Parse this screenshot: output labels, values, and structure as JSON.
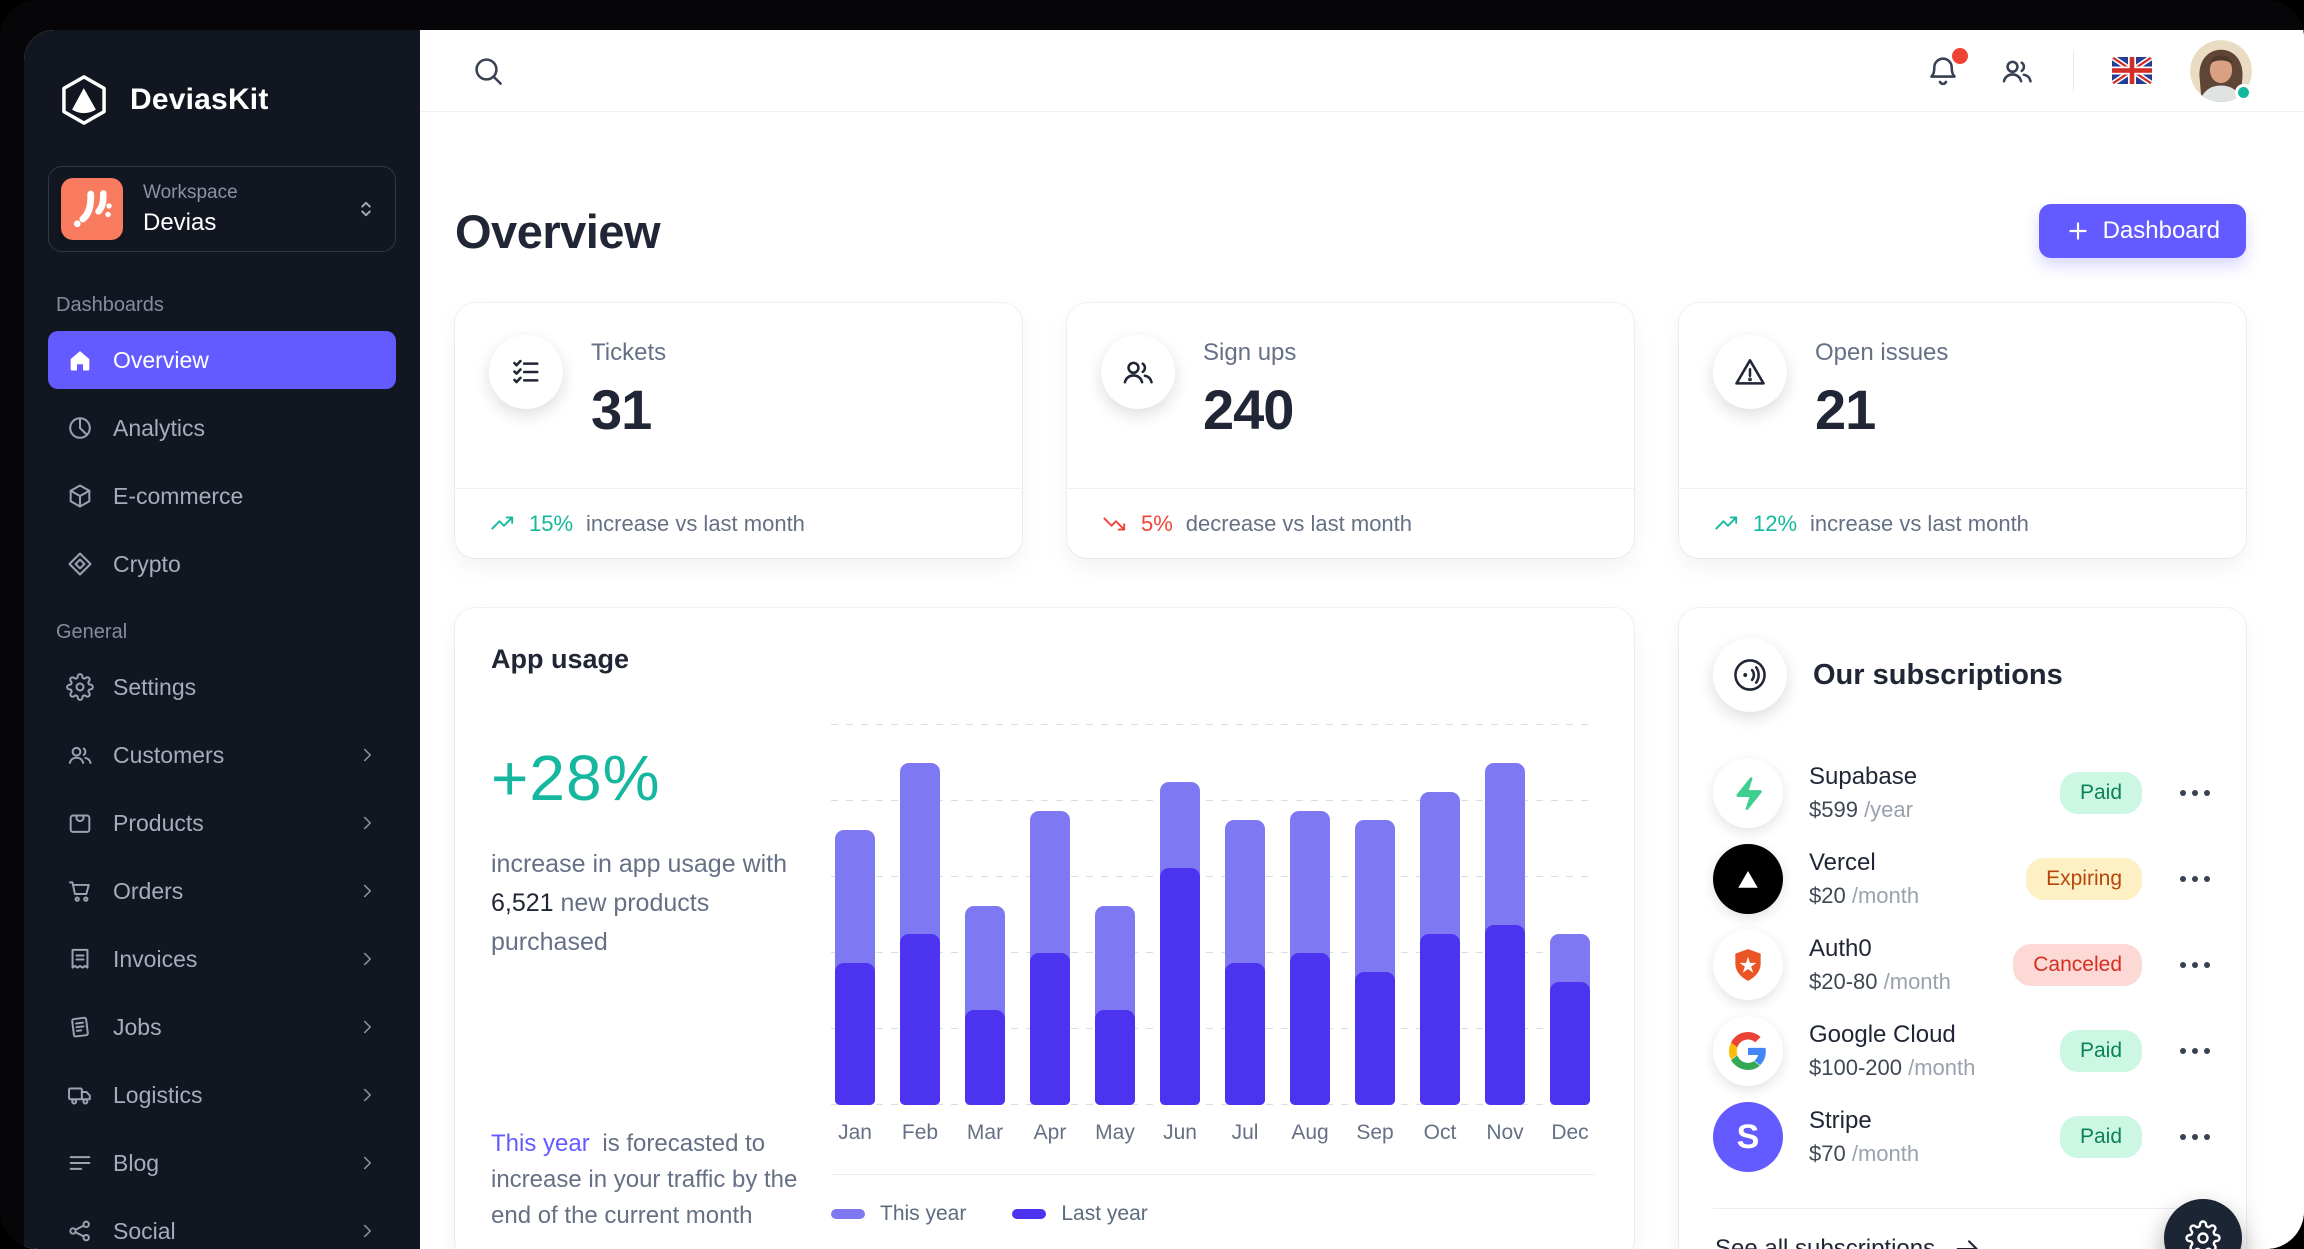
{
  "colors": {
    "primary": "#635bff",
    "sidebar-bg": "#121621",
    "text-dark": "#212636",
    "text-muted": "#667085",
    "success": "#15b79e",
    "error": "#f04438",
    "ws-logo": "#f87b60",
    "badge-paid-bg": "#ccf7e2",
    "badge-paid-text": "#0b815a",
    "badge-expiring-bg": "#fdf0c4",
    "badge-expiring-text": "#b54708",
    "badge-canceled-bg": "#fcd9d5",
    "badge-canceled-text": "#d92d20"
  },
  "sidebar": {
    "brand": "DeviasKit",
    "workspace": {
      "label": "Workspace",
      "name": "Devias"
    },
    "sections": [
      {
        "title": "Dashboards",
        "items": [
          {
            "label": "Overview",
            "icon": "home",
            "active": true
          },
          {
            "label": "Analytics",
            "icon": "chart-pie"
          },
          {
            "label": "E-commerce",
            "icon": "cube"
          },
          {
            "label": "Crypto",
            "icon": "diamond"
          }
        ]
      },
      {
        "title": "General",
        "items": [
          {
            "label": "Settings",
            "icon": "gear"
          },
          {
            "label": "Customers",
            "icon": "users",
            "expandable": true
          },
          {
            "label": "Products",
            "icon": "bag",
            "expandable": true
          },
          {
            "label": "Orders",
            "icon": "cart",
            "expandable": true
          },
          {
            "label": "Invoices",
            "icon": "receipt",
            "expandable": true
          },
          {
            "label": "Jobs",
            "icon": "document",
            "expandable": true
          },
          {
            "label": "Logistics",
            "icon": "truck",
            "expandable": true
          },
          {
            "label": "Blog",
            "icon": "text-lines",
            "expandable": true
          },
          {
            "label": "Social",
            "icon": "share-network",
            "expandable": true
          }
        ]
      }
    ]
  },
  "topbar": {
    "flag": "united-kingdom",
    "avatar_status": "online",
    "notification_badge": true
  },
  "page": {
    "title": "Overview",
    "action_button": "Dashboard"
  },
  "stats": [
    {
      "label": "Tickets",
      "value": "31",
      "icon": "list-checks",
      "trend": "up",
      "trend_value": "15%",
      "trend_suffix": "increase vs last month"
    },
    {
      "label": "Sign ups",
      "value": "240",
      "icon": "users",
      "trend": "down",
      "trend_value": "5%",
      "trend_suffix": "decrease vs last month"
    },
    {
      "label": "Open issues",
      "value": "21",
      "icon": "warning",
      "trend": "up",
      "trend_value": "12%",
      "trend_suffix": "increase vs last month"
    }
  ],
  "app_usage": {
    "title": "App usage",
    "highlight": "+28%",
    "desc_prefix": "increase in app usage with",
    "desc_strong": "6,521",
    "desc_suffix": "new products purchased",
    "note_strong": "This year",
    "note_rest": "is forecasted to increase in your traffic by the end of the current month"
  },
  "chart_data": {
    "type": "bar",
    "title": "App usage",
    "categories": [
      "Jan",
      "Feb",
      "Mar",
      "Apr",
      "May",
      "Jun",
      "Jul",
      "Aug",
      "Sep",
      "Oct",
      "Nov",
      "Dec"
    ],
    "series": [
      {
        "name": "This year",
        "color": "#7e79f2",
        "values": [
          14.5,
          18,
          10.5,
          15.5,
          10.5,
          17,
          15,
          15.5,
          15,
          16.5,
          18,
          9
        ]
      },
      {
        "name": "Last year",
        "color": "#4b33f0",
        "values": [
          7.5,
          9,
          5,
          8,
          5,
          12.5,
          7.5,
          8,
          7,
          9,
          9.5,
          6.5
        ]
      }
    ],
    "ylim": [
      0,
      20
    ],
    "grid": "horizontal-dashed",
    "legend_position": "bottom",
    "bar_style": "overlapped-rounded"
  },
  "subscriptions": {
    "title": "Our subscriptions",
    "icon": "contactless",
    "items": [
      {
        "name": "Supabase",
        "logo": "supabase",
        "price": "$599",
        "period": "/year",
        "status": "Paid"
      },
      {
        "name": "Vercel",
        "logo": "vercel",
        "price": "$20",
        "period": "/month",
        "status": "Expiring"
      },
      {
        "name": "Auth0",
        "logo": "auth0",
        "price": "$20-80",
        "period": "/month",
        "status": "Canceled"
      },
      {
        "name": "Google Cloud",
        "logo": "google",
        "price": "$100-200",
        "period": "/month",
        "status": "Paid"
      },
      {
        "name": "Stripe",
        "logo": "stripe",
        "price": "$70",
        "period": "/month",
        "status": "Paid"
      }
    ],
    "footer_link": "See all subscriptions"
  }
}
